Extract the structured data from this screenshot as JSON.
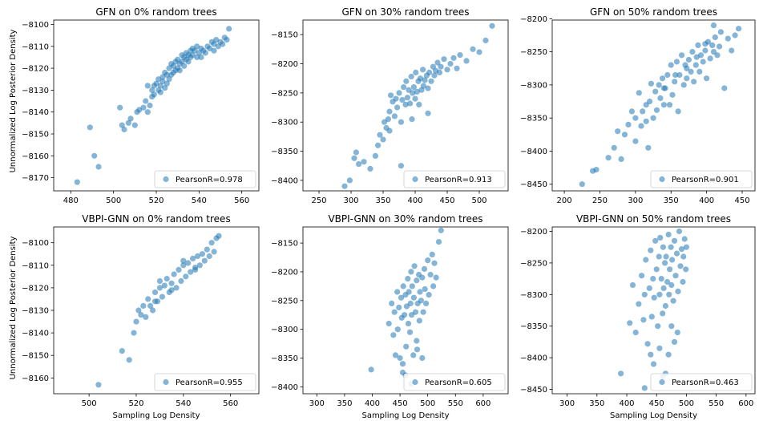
{
  "figure": {
    "ylabel": "Unnormalized Log Posterior Density",
    "xlabel": "Sampling Log Density"
  },
  "style": {
    "point_color": "#1f77b4",
    "point_alpha": 0.55,
    "axes_color": "#000000",
    "background": "#ffffff",
    "legend_edge": "#cccccc"
  },
  "chart_data": [
    {
      "type": "scatter",
      "title": "GFN on 0% random trees",
      "legend": "PearsonR=0.978",
      "legend_position": "lower right",
      "xlim": [
        472,
        568
      ],
      "ylim": [
        -8176,
        -8098
      ],
      "xticks": [
        480,
        500,
        520,
        540,
        560
      ],
      "yticks": [
        -8170,
        -8160,
        -8150,
        -8140,
        -8130,
        -8120,
        -8110,
        -8100
      ],
      "x": [
        483,
        491,
        493,
        489,
        503,
        504,
        505,
        507,
        508,
        510,
        511,
        512,
        514,
        515,
        516,
        516,
        517,
        518,
        518,
        519,
        519,
        520,
        521,
        521,
        522,
        522,
        523,
        523,
        524,
        524,
        525,
        525,
        526,
        526,
        527,
        527,
        528,
        528,
        529,
        529,
        530,
        530,
        531,
        531,
        532,
        532,
        533,
        533,
        534,
        534,
        535,
        535,
        536,
        536,
        537,
        537,
        538,
        539,
        539,
        540,
        541,
        541,
        542,
        543,
        544,
        545,
        546,
        547,
        547,
        548,
        549,
        550,
        551,
        552,
        553,
        554
      ],
      "y": [
        -8172,
        -8160,
        -8165,
        -8147,
        -8138,
        -8146,
        -8148,
        -8145,
        -8143,
        -8146,
        -8140,
        -8139,
        -8138,
        -8135,
        -8128,
        -8140,
        -8137,
        -8130,
        -8133,
        -8128,
        -8132,
        -8127,
        -8130,
        -8125,
        -8128,
        -8131,
        -8126,
        -8124,
        -8129,
        -8122,
        -8127,
        -8123,
        -8125,
        -8120,
        -8123,
        -8118,
        -8122,
        -8119,
        -8121,
        -8117,
        -8120,
        -8116,
        -8118,
        -8121,
        -8117,
        -8114,
        -8119,
        -8115,
        -8116,
        -8113,
        -8117,
        -8114,
        -8115,
        -8112,
        -8114,
        -8111,
        -8112,
        -8115,
        -8110,
        -8113,
        -8111,
        -8115,
        -8112,
        -8113,
        -8110,
        -8111,
        -8108,
        -8112,
        -8109,
        -8107,
        -8110,
        -8108,
        -8109,
        -8106,
        -8107,
        -8102
      ]
    },
    {
      "type": "scatter",
      "title": "GFN on 30% random trees",
      "legend": "PearsonR=0.913",
      "legend_position": "lower right",
      "xlim": [
        225,
        545
      ],
      "ylim": [
        -8418,
        -8125
      ],
      "xticks": [
        250,
        300,
        350,
        400,
        450,
        500
      ],
      "yticks": [
        -8400,
        -8350,
        -8300,
        -8250,
        -8200,
        -8150
      ],
      "x": [
        290,
        298,
        305,
        308,
        312,
        320,
        330,
        338,
        342,
        345,
        350,
        352,
        355,
        358,
        360,
        362,
        365,
        368,
        370,
        372,
        375,
        378,
        380,
        382,
        385,
        386,
        388,
        390,
        392,
        394,
        396,
        398,
        400,
        401,
        403,
        405,
        406,
        408,
        410,
        412,
        413,
        415,
        418,
        420,
        422,
        425,
        428,
        430,
        432,
        435,
        438,
        440,
        445,
        450,
        455,
        460,
        465,
        470,
        480,
        490,
        500,
        510,
        520,
        378,
        360,
        395,
        420
      ],
      "y": [
        -8410,
        -8400,
        -8362,
        -8352,
        -8372,
        -8368,
        -8380,
        -8358,
        -8340,
        -8322,
        -8330,
        -8300,
        -8310,
        -8295,
        -8282,
        -8254,
        -8265,
        -8290,
        -8260,
        -8275,
        -8250,
        -8300,
        -8262,
        -8240,
        -8270,
        -8230,
        -8258,
        -8245,
        -8268,
        -8222,
        -8250,
        -8240,
        -8260,
        -8215,
        -8248,
        -8230,
        -8270,
        -8225,
        -8245,
        -8210,
        -8238,
        -8228,
        -8220,
        -8242,
        -8215,
        -8230,
        -8205,
        -8220,
        -8212,
        -8198,
        -8215,
        -8205,
        -8192,
        -8210,
        -8200,
        -8190,
        -8208,
        -8185,
        -8195,
        -8175,
        -8180,
        -8160,
        -8135,
        -8375,
        -8315,
        -8295,
        -8285
      ]
    },
    {
      "type": "scatter",
      "title": "GFN on 50% random trees",
      "legend": "PearsonR=0.901",
      "legend_position": "lower right",
      "xlim": [
        183,
        468
      ],
      "ylim": [
        -8460,
        -8202
      ],
      "xticks": [
        200,
        250,
        300,
        350,
        400,
        450
      ],
      "yticks": [
        -8450,
        -8400,
        -8350,
        -8300,
        -8250,
        -8200
      ],
      "x": [
        225,
        240,
        245,
        262,
        270,
        275,
        285,
        290,
        295,
        300,
        305,
        308,
        310,
        315,
        318,
        320,
        325,
        328,
        330,
        333,
        335,
        338,
        340,
        342,
        345,
        348,
        350,
        352,
        355,
        358,
        360,
        362,
        365,
        368,
        370,
        372,
        375,
        378,
        380,
        382,
        385,
        388,
        390,
        392,
        395,
        398,
        400,
        402,
        405,
        408,
        410,
        412,
        415,
        418,
        420,
        425,
        430,
        435,
        440,
        445,
        280,
        300,
        315,
        322,
        340,
        356,
        372,
        386,
        398,
        410
      ],
      "y": [
        -8450,
        -8430,
        -8428,
        -8410,
        -8395,
        -8370,
        -8375,
        -8360,
        -8340,
        -8350,
        -8312,
        -8362,
        -8340,
        -8330,
        -8395,
        -8325,
        -8350,
        -8310,
        -8338,
        -8300,
        -8320,
        -8290,
        -8330,
        -8305,
        -8285,
        -8330,
        -8270,
        -8315,
        -8295,
        -8265,
        -8340,
        -8285,
        -8255,
        -8300,
        -8270,
        -8290,
        -8262,
        -8280,
        -8250,
        -8295,
        -8270,
        -8240,
        -8280,
        -8255,
        -8265,
        -8248,
        -8290,
        -8235,
        -8260,
        -8240,
        -8250,
        -8228,
        -8255,
        -8242,
        -8220,
        -8305,
        -8230,
        -8248,
        -8225,
        -8215,
        -8412,
        -8385,
        -8355,
        -8298,
        -8305,
        -8285,
        -8275,
        -8258,
        -8238,
        -8210
      ]
    },
    {
      "type": "scatter",
      "title": "VBPI-GNN on 0% random trees",
      "legend": "PearsonR=0.955",
      "legend_position": "lower right",
      "xlim": [
        485,
        572
      ],
      "ylim": [
        -8167,
        -8093
      ],
      "xticks": [
        500,
        520,
        540,
        560
      ],
      "yticks": [
        -8160,
        -8150,
        -8140,
        -8130,
        -8120,
        -8110,
        -8100
      ],
      "x": [
        504,
        514,
        517,
        519,
        520,
        521,
        522,
        523,
        524,
        525,
        526,
        527,
        528,
        529,
        530,
        531,
        532,
        533,
        534,
        535,
        536,
        537,
        538,
        539,
        540,
        541,
        542,
        543,
        544,
        545,
        546,
        547,
        548,
        549,
        550,
        551,
        552,
        553,
        554,
        555,
        530,
        535,
        540,
        528,
        545
      ],
      "y": [
        -8163,
        -8148,
        -8152,
        -8140,
        -8135,
        -8130,
        -8132,
        -8128,
        -8133,
        -8125,
        -8128,
        -8130,
        -8122,
        -8126,
        -8120,
        -8124,
        -8119,
        -8116,
        -8122,
        -8118,
        -8114,
        -8120,
        -8112,
        -8117,
        -8110,
        -8115,
        -8109,
        -8113,
        -8107,
        -8111,
        -8106,
        -8110,
        -8105,
        -8108,
        -8103,
        -8106,
        -8100,
        -8104,
        -8098,
        -8097,
        -8117,
        -8121,
        -8108,
        -8126,
        -8112
      ]
    },
    {
      "type": "scatter",
      "title": "VBPI-GNN on 30% random trees",
      "legend": "PearsonR=0.605",
      "legend_position": "lower right",
      "xlim": [
        275,
        645
      ],
      "ylim": [
        -8412,
        -8122
      ],
      "xticks": [
        300,
        350,
        400,
        450,
        500,
        550,
        600
      ],
      "yticks": [
        -8400,
        -8350,
        -8300,
        -8250,
        -8200,
        -8150
      ],
      "x": [
        398,
        430,
        435,
        438,
        440,
        442,
        445,
        446,
        448,
        450,
        452,
        453,
        455,
        456,
        458,
        460,
        461,
        462,
        464,
        465,
        466,
        468,
        469,
        470,
        471,
        472,
        474,
        475,
        476,
        478,
        480,
        481,
        482,
        484,
        485,
        486,
        488,
        490,
        492,
        494,
        495,
        497,
        500,
        502,
        505,
        508,
        510,
        512,
        515,
        520,
        524,
        460,
        470,
        480,
        490,
        455
      ],
      "y": [
        -8370,
        -8290,
        -8255,
        -8310,
        -8270,
        -8345,
        -8235,
        -8300,
        -8262,
        -8350,
        -8245,
        -8280,
        -8360,
        -8225,
        -8275,
        -8240,
        -8330,
        -8260,
        -8212,
        -8290,
        -8235,
        -8305,
        -8255,
        -8200,
        -8275,
        -8225,
        -8345,
        -8245,
        -8190,
        -8270,
        -8215,
        -8335,
        -8255,
        -8205,
        -8285,
        -8235,
        -8250,
        -8210,
        -8270,
        -8195,
        -8230,
        -8255,
        -8180,
        -8240,
        -8205,
        -8170,
        -8225,
        -8185,
        -8210,
        -8148,
        -8128,
        -8380,
        -8395,
        -8320,
        -8350,
        -8375
      ]
    },
    {
      "type": "scatter",
      "title": "VBPI-GNN on 50% random trees",
      "legend": "PearsonR=0.463",
      "legend_position": "lower right",
      "xlim": [
        275,
        615
      ],
      "ylim": [
        -8457,
        -8193
      ],
      "xticks": [
        300,
        350,
        400,
        450,
        500,
        550,
        600
      ],
      "yticks": [
        -8450,
        -8400,
        -8350,
        -8300,
        -8250,
        -8200
      ],
      "x": [
        390,
        405,
        410,
        415,
        420,
        425,
        428,
        430,
        432,
        435,
        438,
        440,
        442,
        444,
        446,
        448,
        450,
        452,
        454,
        455,
        456,
        458,
        460,
        461,
        462,
        464,
        465,
        466,
        468,
        470,
        471,
        472,
        474,
        475,
        476,
        478,
        480,
        482,
        484,
        486,
        488,
        490,
        492,
        494,
        495,
        497,
        499,
        500,
        430,
        445,
        460,
        470,
        485,
        455,
        440,
        475,
        465,
        480
      ],
      "y": [
        -8425,
        -8345,
        -8285,
        -8360,
        -8315,
        -8270,
        -8340,
        -8300,
        -8245,
        -8378,
        -8290,
        -8230,
        -8335,
        -8275,
        -8305,
        -8215,
        -8260,
        -8350,
        -8240,
        -8300,
        -8210,
        -8275,
        -8330,
        -8225,
        -8290,
        -8250,
        -8318,
        -8240,
        -8280,
        -8205,
        -8300,
        -8260,
        -8225,
        -8285,
        -8245,
        -8310,
        -8215,
        -8270,
        -8235,
        -8295,
        -8200,
        -8255,
        -8228,
        -8280,
        -8240,
        -8212,
        -8260,
        -8225,
        -8448,
        -8410,
        -8430,
        -8395,
        -8360,
        -8385,
        -8395,
        -8350,
        -8425,
        -8375
      ]
    }
  ]
}
